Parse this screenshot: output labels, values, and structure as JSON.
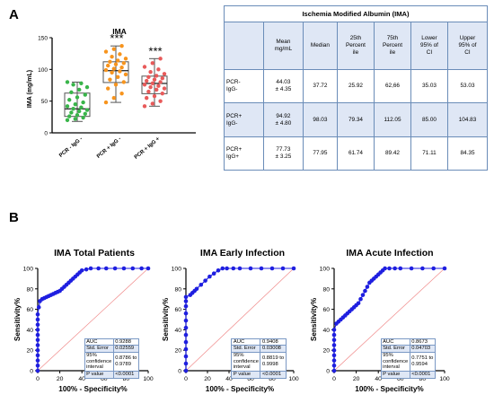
{
  "panels": {
    "a": "A",
    "b": "B"
  },
  "boxplot": {
    "type": "box",
    "title": "IMA",
    "ylabel": "IMA (mg/mL)",
    "ylim": [
      0,
      150
    ],
    "yticks": [
      "0",
      "50",
      "100",
      "150"
    ],
    "categories": [
      "PCR - IgG -",
      "PCR + IgG -",
      "PCR + IgG +"
    ],
    "colors": [
      "#39b54a",
      "#f7941d",
      "#e85a5a"
    ],
    "significance": [
      "",
      "***",
      "***"
    ],
    "boxes": [
      {
        "min": 18,
        "q1": 25.92,
        "median": 37.72,
        "q3": 62.66,
        "max": 80
      },
      {
        "min": 48,
        "q1": 79.34,
        "median": 98.03,
        "q3": 112.05,
        "max": 137
      },
      {
        "min": 42,
        "q1": 61.74,
        "median": 77.95,
        "q3": 89.42,
        "max": 117
      }
    ],
    "points": [
      [
        20,
        22,
        24,
        26,
        28,
        30,
        32,
        34,
        36,
        38,
        40,
        42,
        45,
        48,
        52,
        56,
        60,
        64,
        68,
        72,
        76,
        78,
        80
      ],
      [
        48,
        55,
        62,
        70,
        76,
        80,
        84,
        88,
        92,
        95,
        97,
        99,
        101,
        103,
        106,
        108,
        110,
        112,
        114,
        117,
        120,
        124,
        128,
        132,
        137
      ],
      [
        42,
        46,
        50,
        55,
        58,
        62,
        65,
        68,
        70,
        72,
        74,
        76,
        78,
        80,
        82,
        84,
        86,
        88,
        90,
        93,
        96,
        100,
        104,
        110,
        117
      ]
    ]
  },
  "table": {
    "title": "Ischemia Modified Albumin (IMA)",
    "headers": [
      "",
      "Mean\nmg/mL",
      "Median",
      "25th\nPercent\nile",
      "75th\nPercent\nile",
      "Lower\n95% of\nCI",
      "Upper\n95% of\nCI"
    ],
    "rows": [
      [
        "PCR-\nIgG-",
        "44.03\n± 4.35",
        "37.72",
        "25.92",
        "62,66",
        "35.03",
        "53.03"
      ],
      [
        "PCR+\nIgG-",
        "94.92\n± 4.80",
        "98.03",
        "79.34",
        "112.05",
        "85.00",
        "104.83"
      ],
      [
        "PCR+\nIgG+",
        "77.73\n± 3.25",
        "77.95",
        "61.74",
        "89.42",
        "71.11",
        "84.35"
      ]
    ]
  },
  "roc_common": {
    "xlabel": "100% - Specificity%",
    "ylabel": "Sensitivity%",
    "ticks": [
      "0",
      "20",
      "40",
      "60",
      "80",
      "100"
    ],
    "curve_color": "#1f1fe0",
    "reference_color": "#f08a8a",
    "stat_labels": [
      "AUC",
      "Std. Error",
      "95%\nconfidence\ninterval",
      "P value"
    ]
  },
  "chart_data": [
    {
      "type": "box",
      "title": "IMA",
      "ylabel": "IMA (mg/mL)",
      "ylim": [
        0,
        150
      ],
      "categories": [
        "PCR - IgG -",
        "PCR + IgG -",
        "PCR + IgG +"
      ],
      "medians": [
        37.72,
        98.03,
        77.95
      ],
      "q1": [
        25.92,
        79.34,
        61.74
      ],
      "q3": [
        62.66,
        112.05,
        89.42
      ]
    },
    {
      "type": "line",
      "title": "IMA Total Patients",
      "xlabel": "100% - Specificity%",
      "ylabel": "Sensitivity%",
      "xlim": [
        0,
        100
      ],
      "ylim": [
        0,
        100
      ],
      "x": [
        0,
        0,
        0,
        0,
        0,
        0,
        0,
        0,
        0,
        0,
        0,
        0,
        1,
        2,
        4,
        6,
        8,
        10,
        12,
        14,
        16,
        18,
        20,
        22,
        24,
        26,
        28,
        30,
        32,
        34,
        36,
        38,
        40,
        44,
        48,
        55,
        62,
        70,
        78,
        86,
        94,
        100
      ],
      "y": [
        0,
        5,
        10,
        15,
        20,
        25,
        30,
        35,
        40,
        45,
        50,
        55,
        62,
        68,
        70,
        71,
        72,
        73,
        74,
        75,
        76,
        77,
        78,
        80,
        82,
        84,
        86,
        88,
        90,
        92,
        94,
        96,
        98,
        99,
        100,
        100,
        100,
        100,
        100,
        100,
        100,
        100
      ],
      "stats": {
        "auc": "0.9288",
        "std_error": "0.02559",
        "ci": "0.8786 to\n0.9789",
        "p_value": "<0.0001"
      }
    },
    {
      "type": "line",
      "title": "IMA Early Infection",
      "xlabel": "100% - Specificity%",
      "ylabel": "Sensitivity%",
      "xlim": [
        0,
        100
      ],
      "ylim": [
        0,
        100
      ],
      "x": [
        0,
        0,
        0,
        0,
        0,
        0,
        0,
        0,
        0,
        0,
        0,
        0,
        4,
        6,
        8,
        10,
        14,
        18,
        22,
        26,
        30,
        34,
        38,
        44,
        50,
        60,
        70,
        80,
        90,
        100
      ],
      "y": [
        0,
        7,
        14,
        21,
        28,
        35,
        42,
        49,
        56,
        63,
        68,
        72,
        74,
        76,
        78,
        80,
        84,
        88,
        92,
        95,
        98,
        100,
        100,
        100,
        100,
        100,
        100,
        100,
        100,
        100
      ],
      "stats": {
        "auc": "0.9408",
        "std_error": "0.03008",
        "ci": "0.8819 to\n0.9998",
        "p_value": "<0.0001"
      }
    },
    {
      "type": "line",
      "title": "IMA Acute Infection",
      "xlabel": "100% - Specificity%",
      "ylabel": "Sensitivity%",
      "xlim": [
        0,
        100
      ],
      "ylim": [
        0,
        100
      ],
      "x": [
        0,
        0,
        0,
        0,
        0,
        0,
        0,
        0,
        0,
        2,
        4,
        6,
        8,
        10,
        12,
        14,
        16,
        18,
        20,
        22,
        24,
        26,
        28,
        30,
        32,
        34,
        36,
        38,
        40,
        42,
        44,
        46,
        50,
        55,
        60,
        70,
        80,
        90,
        100
      ],
      "y": [
        0,
        5,
        10,
        15,
        20,
        25,
        30,
        35,
        40,
        46,
        48,
        50,
        52,
        54,
        56,
        58,
        60,
        62,
        64,
        66,
        70,
        74,
        78,
        82,
        86,
        88,
        90,
        92,
        94,
        96,
        98,
        100,
        100,
        100,
        100,
        100,
        100,
        100,
        100
      ],
      "stats": {
        "auc": "0.8673",
        "std_error": "0.04703",
        "ci": "0.7751 to\n0.9594",
        "p_value": "<0.0001"
      }
    }
  ]
}
